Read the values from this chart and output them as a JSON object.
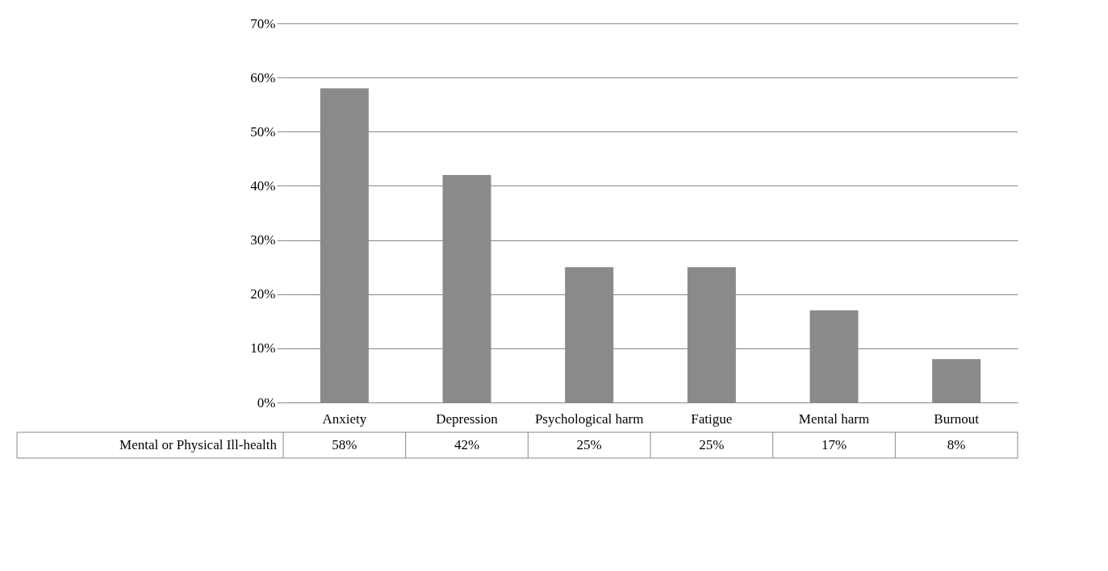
{
  "chart_data": {
    "type": "bar",
    "categories": [
      "Anxiety",
      "Depression",
      "Psychological harm",
      "Fatigue",
      "Mental harm",
      "Burnout"
    ],
    "series": [
      {
        "name": "Mental or Physical Ill-health",
        "color": "#8a8a8a",
        "values": [
          58,
          42,
          25,
          25,
          17,
          8
        ],
        "value_labels": [
          "58%",
          "42%",
          "25%",
          "25%",
          "17%",
          "8%"
        ]
      }
    ],
    "ylim": [
      0,
      70
    ],
    "yticks": [
      {
        "value": 0,
        "label": "0%"
      },
      {
        "value": 10,
        "label": "10%"
      },
      {
        "value": 20,
        "label": "20%"
      },
      {
        "value": 30,
        "label": "30%"
      },
      {
        "value": 40,
        "label": "40%"
      },
      {
        "value": 50,
        "label": "50%"
      },
      {
        "value": 60,
        "label": "60%"
      },
      {
        "value": 70,
        "label": "70%"
      }
    ],
    "grid": "y",
    "legend": "bottom"
  }
}
